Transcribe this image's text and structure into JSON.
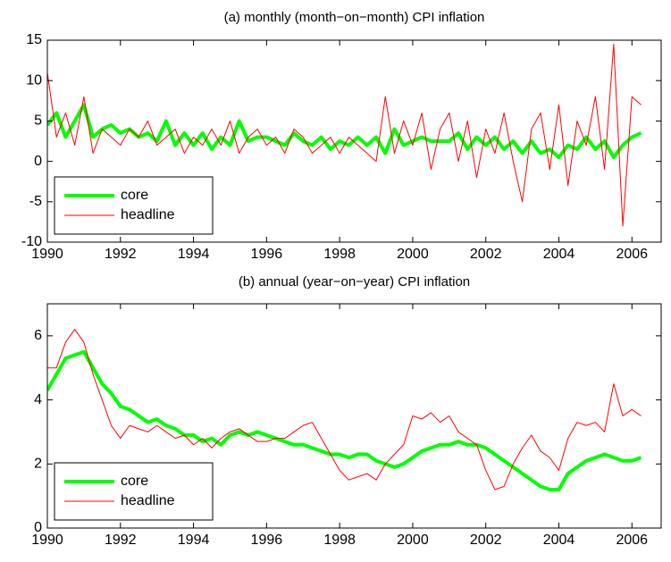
{
  "chart_data": [
    {
      "type": "line",
      "title": "(a) monthly (month−on−month) CPI inflation",
      "x": [
        1990,
        1990.25,
        1990.5,
        1990.75,
        1991,
        1991.25,
        1991.5,
        1991.75,
        1992,
        1992.25,
        1992.5,
        1992.75,
        1993,
        1993.25,
        1993.5,
        1993.75,
        1994,
        1994.25,
        1994.5,
        1994.75,
        1995,
        1995.25,
        1995.5,
        1995.75,
        1996,
        1996.25,
        1996.5,
        1996.75,
        1997,
        1997.25,
        1997.5,
        1997.75,
        1998,
        1998.25,
        1998.5,
        1998.75,
        1999,
        1999.25,
        1999.5,
        1999.75,
        2000,
        2000.25,
        2000.5,
        2000.75,
        2001,
        2001.25,
        2001.5,
        2001.75,
        2002,
        2002.25,
        2002.5,
        2002.75,
        2003,
        2003.25,
        2003.5,
        2003.75,
        2004,
        2004.25,
        2004.5,
        2004.75,
        2005,
        2005.25,
        2005.5,
        2005.75,
        2006,
        2006.25
      ],
      "series": [
        {
          "name": "core",
          "color": "#00ff00",
          "width": 4,
          "values": [
            4.5,
            6,
            3,
            5,
            7,
            3,
            4,
            4.5,
            3.5,
            4,
            3,
            3.5,
            2.5,
            5,
            2,
            3.5,
            2,
            3.5,
            1.5,
            3,
            2,
            5,
            2.5,
            3,
            3,
            2.5,
            2,
            3.5,
            2.5,
            2,
            3,
            1.5,
            2.5,
            2,
            3,
            2,
            3,
            1,
            4,
            2,
            2.5,
            3,
            2.5,
            2.5,
            2.5,
            3.5,
            1.5,
            3,
            2,
            3,
            1.5,
            2.5,
            1,
            2.5,
            1,
            1.5,
            0.5,
            2,
            1.5,
            3,
            1.5,
            2.5,
            0.5,
            2,
            3,
            3.5
          ]
        },
        {
          "name": "headline",
          "color": "#ff0000",
          "width": 1,
          "values": [
            11,
            3,
            6,
            2,
            8,
            1,
            4,
            3,
            2,
            4,
            3,
            5,
            2,
            3,
            4,
            1,
            3,
            2,
            4,
            2,
            5,
            1,
            3,
            4,
            2,
            3,
            1,
            4,
            3,
            1,
            2,
            3,
            1,
            3,
            2,
            1,
            0,
            8,
            1,
            5,
            2,
            6,
            -1,
            4,
            6,
            0,
            5,
            -2,
            4,
            1,
            6,
            0,
            -5,
            4,
            6,
            -1,
            7,
            -3,
            5,
            2,
            8,
            -1,
            14.5,
            -8,
            8,
            7
          ]
        }
      ],
      "xlim": [
        1990,
        2006.8
      ],
      "xticks": [
        1990,
        1992,
        1994,
        1996,
        1998,
        2000,
        2002,
        2004,
        2006
      ],
      "ylim": [
        -10,
        15
      ],
      "yticks": [
        -10,
        -5,
        0,
        5,
        10,
        15
      ],
      "legend": "lower left"
    },
    {
      "type": "line",
      "title": "(b) annual (year−on−year) CPI inflation",
      "x": [
        1990,
        1990.25,
        1990.5,
        1990.75,
        1991,
        1991.25,
        1991.5,
        1991.75,
        1992,
        1992.25,
        1992.5,
        1992.75,
        1993,
        1993.25,
        1993.5,
        1993.75,
        1994,
        1994.25,
        1994.5,
        1994.75,
        1995,
        1995.25,
        1995.5,
        1995.75,
        1996,
        1996.25,
        1996.5,
        1996.75,
        1997,
        1997.25,
        1997.5,
        1997.75,
        1998,
        1998.25,
        1998.5,
        1998.75,
        1999,
        1999.25,
        1999.5,
        1999.75,
        2000,
        2000.25,
        2000.5,
        2000.75,
        2001,
        2001.25,
        2001.5,
        2001.75,
        2002,
        2002.25,
        2002.5,
        2002.75,
        2003,
        2003.25,
        2003.5,
        2003.75,
        2004,
        2004.25,
        2004.5,
        2004.75,
        2005,
        2005.25,
        2005.5,
        2005.75,
        2006,
        2006.25
      ],
      "series": [
        {
          "name": "core",
          "color": "#00ff00",
          "width": 4,
          "values": [
            4.3,
            4.8,
            5.3,
            5.4,
            5.5,
            5,
            4.5,
            4.2,
            3.8,
            3.7,
            3.5,
            3.3,
            3.4,
            3.2,
            3.1,
            2.9,
            2.9,
            2.7,
            2.8,
            2.6,
            2.9,
            3,
            2.9,
            3,
            2.9,
            2.8,
            2.7,
            2.6,
            2.6,
            2.5,
            2.4,
            2.3,
            2.3,
            2.2,
            2.3,
            2.3,
            2.1,
            2,
            1.9,
            2,
            2.2,
            2.4,
            2.5,
            2.6,
            2.6,
            2.7,
            2.6,
            2.6,
            2.5,
            2.3,
            2.1,
            1.9,
            1.7,
            1.5,
            1.3,
            1.2,
            1.2,
            1.7,
            1.9,
            2.1,
            2.2,
            2.3,
            2.2,
            2.1,
            2.1,
            2.2
          ]
        },
        {
          "name": "headline",
          "color": "#ff0000",
          "width": 1,
          "values": [
            5,
            5,
            5.8,
            6.2,
            5.8,
            4.8,
            4,
            3.2,
            2.8,
            3.2,
            3.1,
            3,
            3.2,
            3,
            2.8,
            2.9,
            2.6,
            2.8,
            2.5,
            2.8,
            3,
            3.1,
            2.9,
            2.7,
            2.7,
            2.8,
            2.8,
            3,
            3.2,
            3.3,
            2.8,
            2.3,
            1.8,
            1.5,
            1.6,
            1.7,
            1.5,
            2,
            2.3,
            2.6,
            3.5,
            3.4,
            3.6,
            3.3,
            3.5,
            3,
            2.8,
            2.6,
            1.8,
            1.2,
            1.3,
            2,
            2.5,
            2.9,
            2.4,
            2.2,
            1.8,
            2.8,
            3.3,
            3.2,
            3.3,
            3,
            4.5,
            3.5,
            3.7,
            3.5
          ]
        }
      ],
      "xlim": [
        1990,
        2006.8
      ],
      "xticks": [
        1990,
        1992,
        1994,
        1996,
        1998,
        2000,
        2002,
        2004,
        2006
      ],
      "ylim": [
        0,
        7
      ],
      "yticks": [
        0,
        2,
        4,
        6
      ],
      "legend": "lower left"
    }
  ]
}
